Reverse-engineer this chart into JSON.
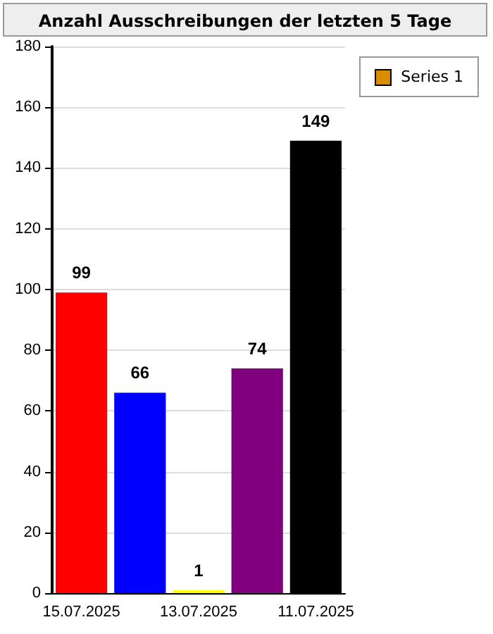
{
  "chart_data": {
    "type": "bar",
    "title": "Anzahl Ausschreibungen der letzten 5 Tage",
    "categories": [
      "15.07.2025",
      null,
      "13.07.2025",
      null,
      "11.07.2025"
    ],
    "series": [
      {
        "name": "Series 1",
        "color": "#d98c00",
        "colors": [
          "#ff0000",
          "#0000ff",
          "#ffff00",
          "#800080",
          "#000000"
        ],
        "values": [
          99,
          66,
          1,
          74,
          149
        ]
      }
    ],
    "ylim": [
      0,
      180
    ],
    "yticks": [
      0,
      20,
      40,
      60,
      80,
      100,
      120,
      140,
      160,
      180
    ],
    "grid": "y",
    "legend": "top right",
    "data_labels": true
  }
}
